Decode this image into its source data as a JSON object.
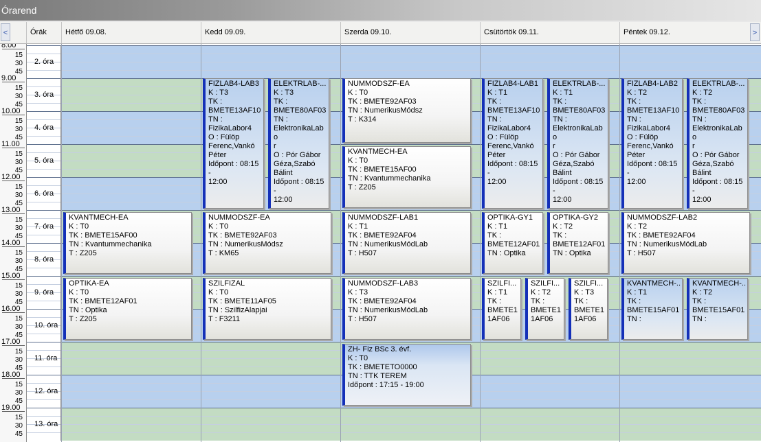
{
  "window": {
    "title": "Órarend"
  },
  "header": {
    "prev_icon": "chevron-left-icon",
    "next_icon": "chevron-right-icon",
    "prev_glyph": "<",
    "next_glyph": ">",
    "orak_label": "Órák",
    "days": [
      {
        "label": "Hétfő  09.08."
      },
      {
        "label": "Kedd  09.09."
      },
      {
        "label": "Szerda  09.10."
      },
      {
        "label": "Csütörtök  09.11."
      },
      {
        "label": "Péntek  09.12."
      }
    ]
  },
  "timeline": {
    "hours": [
      "8.00",
      "9.00",
      "10.00",
      "11.00",
      "12.00",
      "13.00",
      "14.00",
      "15.00",
      "16.00",
      "17.00",
      "18.00",
      "19.00"
    ],
    "minutes": [
      "15",
      "30",
      "45"
    ]
  },
  "periods": [
    "2. óra",
    "3. óra",
    "4. óra",
    "5. óra",
    "6. óra",
    "7. óra",
    "8. óra",
    "9. óra",
    "10. óra",
    "11. óra",
    "12. óra",
    "13. óra"
  ],
  "colors": {
    "blue_band": "#b8d0ee",
    "green_band": "#c3dcc3",
    "accent": "#1430b8"
  },
  "events": [
    {
      "day": 1,
      "sub": 0,
      "subs": 2,
      "start": 1,
      "end": 5,
      "style": "blue",
      "title": "FIZLAB4-LAB3",
      "lines": [
        "K : T3",
        "TK :",
        "BMETE13AF10",
        "TN :",
        "FizikaLabor4",
        "O : Fülöp",
        "Ferenc,Vankó",
        "Péter",
        "Időpont : 08:15 -",
        "12:00"
      ]
    },
    {
      "day": 1,
      "sub": 1,
      "subs": 2,
      "start": 1,
      "end": 5,
      "style": "blue",
      "title": "ELEKTRLAB-...",
      "lines": [
        "K : T3",
        "TK :",
        "BMETE80AF03",
        "TN :",
        "ElektronikaLabo",
        "r",
        "O : Pór Gábor",
        "Géza,Szabó",
        "Bálint",
        "Időpont : 08:15 -",
        "12:00"
      ]
    },
    {
      "day": 2,
      "sub": 0,
      "subs": 1,
      "start": 1,
      "end": 3,
      "style": "white",
      "title": "NUMMODSZF-EA",
      "lines": [
        "K : T0",
        "TK : BMETE92AF03",
        "TN : NumerikusMódsz",
        "T : K314"
      ]
    },
    {
      "day": 2,
      "sub": 0,
      "subs": 1,
      "start": 3,
      "end": 5,
      "style": "white",
      "title": "KVANTMECH-EA",
      "lines": [
        "K : T0",
        "TK : BMETE15AF00",
        "TN : Kvantummechanika",
        "T : Z205"
      ]
    },
    {
      "day": 3,
      "sub": 0,
      "subs": 2,
      "start": 1,
      "end": 5,
      "style": "blue",
      "title": "FIZLAB4-LAB1",
      "lines": [
        "K : T1",
        "TK :",
        "BMETE13AF10",
        "TN :",
        "FizikaLabor4",
        "O : Fülöp",
        "Ferenc,Vankó",
        "Péter",
        "Időpont : 08:15 -",
        "12:00"
      ]
    },
    {
      "day": 3,
      "sub": 1,
      "subs": 2,
      "start": 1,
      "end": 5,
      "style": "blue",
      "title": "ELEKTRLAB-...",
      "lines": [
        "K : T1",
        "TK :",
        "BMETE80AF03",
        "TN :",
        "ElektronikaLabo",
        "r",
        "O : Pór Gábor",
        "Géza,Szabó",
        "Bálint",
        "Időpont : 08:15 -",
        "12:00"
      ]
    },
    {
      "day": 4,
      "sub": 0,
      "subs": 2,
      "start": 1,
      "end": 5,
      "style": "blue",
      "title": "FIZLAB4-LAB2",
      "lines": [
        "K : T2",
        "TK :",
        "BMETE13AF10",
        "TN :",
        "FizikaLabor4",
        "O : Fülöp",
        "Ferenc,Vankó",
        "Péter",
        "Időpont : 08:15 -",
        "12:00"
      ]
    },
    {
      "day": 4,
      "sub": 1,
      "subs": 2,
      "start": 1,
      "end": 5,
      "style": "blue",
      "title": "ELEKTRLAB-...",
      "lines": [
        "K : T2",
        "TK :",
        "BMETE80AF03",
        "TN :",
        "ElektronikaLabo",
        "r",
        "O : Pór Gábor",
        "Géza,Szabó",
        "Bálint",
        "Időpont : 08:15 -",
        "12:00"
      ]
    },
    {
      "day": 0,
      "sub": 0,
      "subs": 1,
      "start": 5,
      "end": 7,
      "style": "white",
      "title": "KVANTMECH-EA",
      "lines": [
        "K : T0",
        "TK : BMETE15AF00",
        "TN : Kvantummechanika",
        "T : Z205"
      ]
    },
    {
      "day": 1,
      "sub": 0,
      "subs": 1,
      "start": 5,
      "end": 7,
      "style": "white",
      "title": "NUMMODSZF-EA",
      "lines": [
        "K : T0",
        "TK : BMETE92AF03",
        "TN : NumerikusMódsz",
        "T : KM65"
      ]
    },
    {
      "day": 2,
      "sub": 0,
      "subs": 1,
      "start": 5,
      "end": 7,
      "style": "white",
      "title": "NUMMODSZF-LAB1",
      "lines": [
        "K : T1",
        "TK : BMETE92AF04",
        "TN : NumerikusMódLab",
        "T : H507"
      ]
    },
    {
      "day": 3,
      "sub": 0,
      "subs": 2,
      "start": 5,
      "end": 7,
      "style": "white",
      "title": "OPTIKA-GY1",
      "lines": [
        "K : T1",
        "TK :",
        "BMETE12AF01",
        "TN : Optika"
      ]
    },
    {
      "day": 3,
      "sub": 1,
      "subs": 2,
      "start": 5,
      "end": 7,
      "style": "white",
      "title": "OPTIKA-GY2",
      "lines": [
        "K : T2",
        "TK :",
        "BMETE12AF01",
        "TN : Optika"
      ]
    },
    {
      "day": 4,
      "sub": 0,
      "subs": 1,
      "start": 5,
      "end": 7,
      "style": "white",
      "title": "NUMMODSZF-LAB2",
      "lines": [
        "K : T2",
        "TK : BMETE92AF04",
        "TN : NumerikusMódLab",
        "T : H507"
      ]
    },
    {
      "day": 0,
      "sub": 0,
      "subs": 1,
      "start": 7,
      "end": 9,
      "style": "white",
      "title": "OPTIKA-EA",
      "lines": [
        "K : T0",
        "TK : BMETE12AF01",
        "TN : Optika",
        "T : Z205"
      ]
    },
    {
      "day": 1,
      "sub": 0,
      "subs": 1,
      "start": 7,
      "end": 9,
      "style": "white",
      "title": "SZILFIZAL",
      "lines": [
        "K : T0",
        "TK : BMETE11AF05",
        "TN : SzilfizAlapjai",
        "T : F3211"
      ]
    },
    {
      "day": 2,
      "sub": 0,
      "subs": 1,
      "start": 7,
      "end": 9,
      "style": "white",
      "title": "NUMMODSZF-LAB3",
      "lines": [
        "K : T3",
        "TK : BMETE92AF04",
        "TN : NumerikusMódLab",
        "T : H507"
      ]
    },
    {
      "day": 3,
      "sub": 0,
      "subs": 3,
      "start": 7,
      "end": 9,
      "style": "white",
      "title": "SZILFI...",
      "lines": [
        "K : T1",
        "TK :",
        "BMETE1",
        "1AF06"
      ]
    },
    {
      "day": 3,
      "sub": 1,
      "subs": 3,
      "start": 7,
      "end": 9,
      "style": "white",
      "title": "SZILFI...",
      "lines": [
        "K : T2",
        "TK :",
        "BMETE1",
        "1AF06"
      ]
    },
    {
      "day": 3,
      "sub": 2,
      "subs": 3,
      "start": 7,
      "end": 9,
      "style": "white",
      "title": "SZILFI...",
      "lines": [
        "K : T3",
        "TK :",
        "BMETE1",
        "1AF06"
      ]
    },
    {
      "day": 4,
      "sub": 0,
      "subs": 2,
      "start": 7,
      "end": 9,
      "style": "blue",
      "title": "KVANTMECH-...",
      "lines": [
        "K : T1",
        "TK :",
        "BMETE15AF01",
        "TN :"
      ]
    },
    {
      "day": 4,
      "sub": 1,
      "subs": 2,
      "start": 7,
      "end": 9,
      "style": "blue",
      "title": "KVANTMECH-...",
      "lines": [
        "K : T2",
        "TK :",
        "BMETE15AF01",
        "TN :"
      ]
    },
    {
      "day": 2,
      "sub": 0,
      "subs": 1,
      "start": 9,
      "end": 11,
      "style": "zh",
      "title": "ZH- Fiz BSc 3. évf.",
      "lines": [
        "K : T0",
        "TK : BMETETO0000",
        "TN : TTK TEREM",
        "Időpont : 17:15 - 19:00"
      ]
    }
  ]
}
